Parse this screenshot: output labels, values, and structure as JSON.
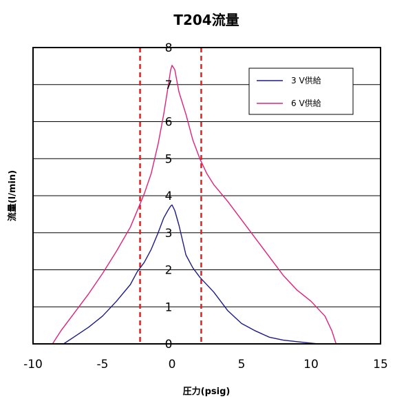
{
  "chart_data": {
    "type": "line",
    "title": "T204流量",
    "xlabel": "圧力(psig)",
    "ylabel": "流量(l/min)",
    "xlim": [
      -10,
      15
    ],
    "ylim": [
      0,
      8
    ],
    "x_ticks": [
      "-10",
      "-5",
      "0",
      "5",
      "10",
      "15"
    ],
    "y_ticks": [
      "0",
      "1",
      "2",
      "3",
      "4",
      "5",
      "6",
      "7",
      "8"
    ],
    "grid": "horizontal",
    "legend_position": "top-right",
    "series": [
      {
        "name": "3 V供給",
        "color": "#1a1a8a",
        "x": [
          -7.8,
          -7.0,
          -6.0,
          -5.0,
          -4.0,
          -3.0,
          -2.5,
          -2.0,
          -1.5,
          -1.0,
          -0.6,
          -0.3,
          -0.1,
          0.0,
          0.2,
          0.5,
          1.0,
          1.5,
          2.0,
          3.0,
          4.0,
          5.0,
          6.0,
          7.0,
          8.0,
          9.0,
          10.0,
          10.5
        ],
        "y": [
          0.0,
          0.2,
          0.45,
          0.75,
          1.15,
          1.6,
          1.95,
          2.2,
          2.55,
          3.0,
          3.4,
          3.6,
          3.72,
          3.75,
          3.6,
          3.2,
          2.4,
          2.05,
          1.8,
          1.4,
          0.9,
          0.55,
          0.35,
          0.18,
          0.1,
          0.06,
          0.02,
          0.0
        ]
      },
      {
        "name": "6 V供給",
        "color": "#e0207a",
        "x": [
          -8.6,
          -8.0,
          -7.0,
          -6.0,
          -5.0,
          -4.0,
          -3.0,
          -2.0,
          -1.5,
          -1.0,
          -0.6,
          -0.3,
          -0.1,
          0.0,
          0.2,
          0.5,
          1.0,
          1.5,
          2.0,
          2.5,
          3.0,
          4.0,
          5.0,
          6.0,
          7.0,
          8.0,
          9.0,
          10.0,
          11.0,
          11.5,
          11.8
        ],
        "y": [
          0.0,
          0.35,
          0.85,
          1.35,
          1.9,
          2.5,
          3.15,
          4.05,
          4.6,
          5.4,
          6.2,
          6.9,
          7.4,
          7.52,
          7.4,
          6.8,
          6.2,
          5.5,
          5.0,
          4.6,
          4.3,
          3.85,
          3.35,
          2.85,
          2.35,
          1.85,
          1.45,
          1.15,
          0.75,
          0.35,
          0.0
        ]
      }
    ],
    "reference_lines": {
      "type": "vertical-dashed",
      "color": "#e02020",
      "x": [
        -2.3,
        2.1
      ]
    }
  }
}
